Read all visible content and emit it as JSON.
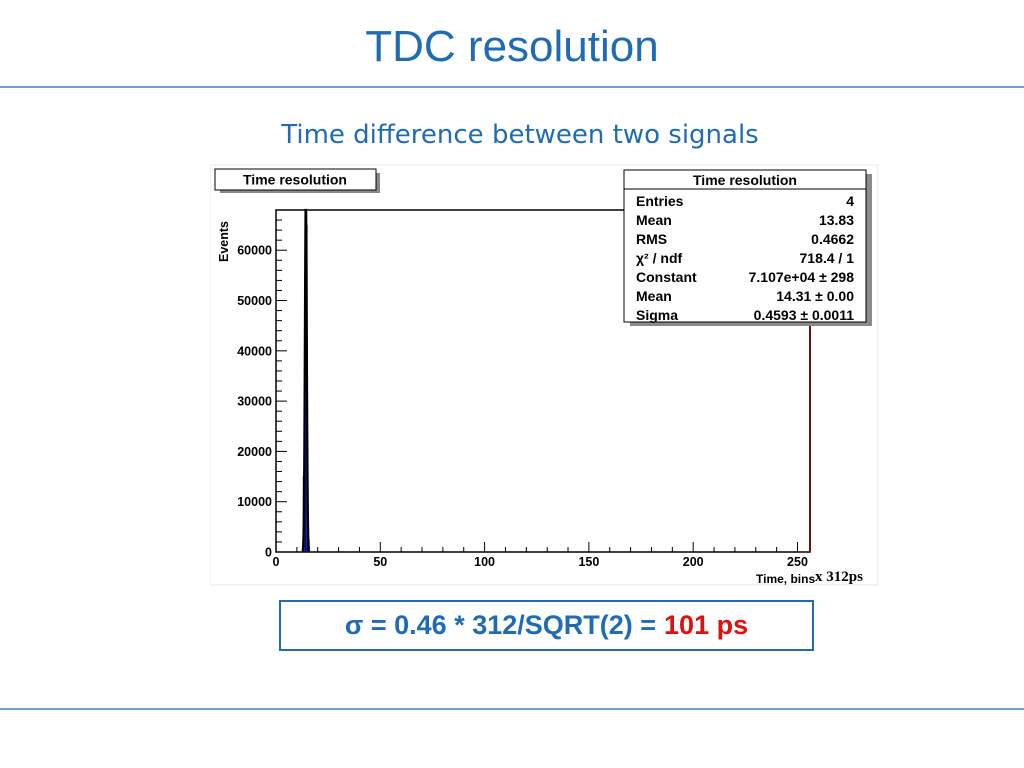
{
  "slide": {
    "title": "TDC resolution",
    "subtitle": "Time difference between two signals",
    "unit_note": "x 312ps",
    "formula_main": "σ = 0.46 * 312/SQRT(2) =",
    "formula_result": "101 ps",
    "colors": {
      "title": "#1f6cb5",
      "rule": "#6f9fd0",
      "result": "#e01010",
      "histogram_fill": "#1a1ad0"
    }
  },
  "plot": {
    "title_box": "Time resolution",
    "stats_box": {
      "title": "Time resolution",
      "rows": [
        {
          "label": "Entries",
          "value": "4"
        },
        {
          "label": "Mean",
          "value": "13.83"
        },
        {
          "label": "RMS",
          "value": "0.4662"
        },
        {
          "label": "χ² / ndf",
          "value": "718.4 / 1"
        },
        {
          "label": "Constant",
          "value": "7.107e+04 ± 298"
        },
        {
          "label": "Mean",
          "value": "14.31 ± 0.00"
        },
        {
          "label": "Sigma",
          "value": "0.4593 ± 0.0011"
        }
      ]
    }
  },
  "chart_data": {
    "type": "bar",
    "title": "Time resolution",
    "xlabel": "Time, bins",
    "ylabel": "Events",
    "xlim": [
      0,
      256
    ],
    "ylim": [
      0,
      68000
    ],
    "x_ticks": [
      "0",
      "50",
      "100",
      "150",
      "200",
      "250"
    ],
    "y_ticks": [
      "0",
      "10000",
      "20000",
      "30000",
      "40000",
      "50000",
      "60000"
    ],
    "histogram": {
      "bin_edges": [
        13,
        14,
        15,
        16
      ],
      "values": [
        15000,
        65000,
        2500
      ]
    },
    "fit": {
      "function": "gaussian",
      "constant": 71070,
      "mean": 14.31,
      "sigma": 0.4593
    }
  }
}
